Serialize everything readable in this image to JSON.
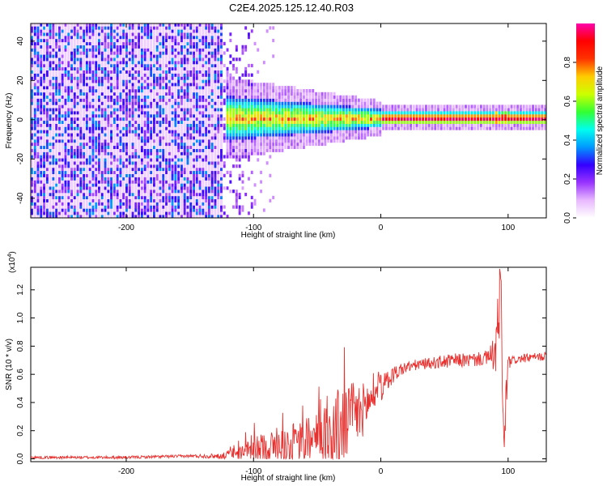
{
  "title": "C2E4.2025.125.12.40.R03",
  "chart_data": [
    {
      "type": "heatmap",
      "xlabel": "Height of straight line (km)",
      "ylabel": "Frequency (Hz)",
      "xlim": [
        -275,
        130
      ],
      "ylim": [
        -50,
        49
      ],
      "x_ticks": [
        -200,
        -100,
        0,
        100
      ],
      "x_tick_labels": [
        "-200",
        "-100",
        "0",
        "100"
      ],
      "y_ticks": [
        -40,
        -20,
        0,
        20,
        40
      ],
      "y_tick_labels": [
        "-40",
        "-20",
        "0",
        "20",
        "40"
      ],
      "colorbar": {
        "label": "Normalized spectral amplitude",
        "range": [
          0.0,
          1.0
        ],
        "ticks": [
          0.0,
          0.2,
          0.4,
          0.6,
          0.8
        ],
        "tick_labels": [
          "0.0",
          "0.2",
          "0.4",
          "0.6",
          "0.8"
        ],
        "colors": [
          "#ffffff",
          "#e8b8ff",
          "#9933ff",
          "#3300ff",
          "#0099ff",
          "#00ffee",
          "#33ff33",
          "#ccff00",
          "#ffcc00",
          "#ff3300",
          "#ff0000",
          "#ff00aa"
        ]
      },
      "grid": false
    },
    {
      "type": "line",
      "xlabel": "Height of straight line (km)",
      "ylabel": "SNR (10 * v/v)",
      "y_multiplier_label": "(x10",
      "y_multiplier_exp": "4",
      "y_multiplier_close": ")",
      "xlim": [
        -275,
        130
      ],
      "ylim": [
        -0.02,
        1.36
      ],
      "x_ticks": [
        -200,
        -100,
        0,
        100
      ],
      "x_tick_labels": [
        "-200",
        "-100",
        "0",
        "100"
      ],
      "y_ticks": [
        0.0,
        0.2,
        0.4,
        0.6,
        0.8,
        1.0,
        1.2
      ],
      "y_tick_labels": [
        "0.0",
        "0.2",
        "0.4",
        "0.6",
        "0.8",
        "1.0",
        "1.2"
      ],
      "line_color": "#e8312f",
      "series": [
        {
          "x": [
            -275,
            -250,
            -200,
            -150,
            -125,
            -110,
            -100,
            -90,
            -80,
            -70,
            -60,
            -50,
            -40,
            -35,
            -30,
            -25,
            -20,
            -15,
            -10,
            -5,
            0,
            5,
            10,
            15,
            20,
            30,
            40,
            50,
            60,
            70,
            80,
            85,
            90,
            92,
            94,
            96,
            97,
            98,
            100,
            105,
            110,
            120,
            130
          ],
          "y": [
            0.01,
            0.01,
            0.01,
            0.02,
            0.02,
            0.04,
            0.06,
            0.08,
            0.09,
            0.1,
            0.12,
            0.15,
            0.18,
            0.2,
            0.24,
            0.28,
            0.3,
            0.34,
            0.4,
            0.45,
            0.5,
            0.55,
            0.6,
            0.63,
            0.65,
            0.67,
            0.68,
            0.69,
            0.7,
            0.7,
            0.71,
            0.72,
            0.75,
            0.9,
            1.1,
            0.25,
            0.05,
            0.35,
            0.68,
            0.7,
            0.71,
            0.72,
            0.73
          ],
          "noise": [
            0.01,
            0.01,
            0.01,
            0.01,
            0.02,
            0.05,
            0.09,
            0.12,
            0.12,
            0.14,
            0.16,
            0.18,
            0.25,
            0.3,
            0.3,
            0.28,
            0.25,
            0.2,
            0.15,
            0.12,
            0.1,
            0.08,
            0.06,
            0.05,
            0.04,
            0.04,
            0.04,
            0.05,
            0.05,
            0.05,
            0.05,
            0.06,
            0.15,
            0.3,
            0.3,
            0.25,
            0.1,
            0.2,
            0.05,
            0.03,
            0.03,
            0.03,
            0.03
          ]
        }
      ],
      "grid": false
    }
  ]
}
